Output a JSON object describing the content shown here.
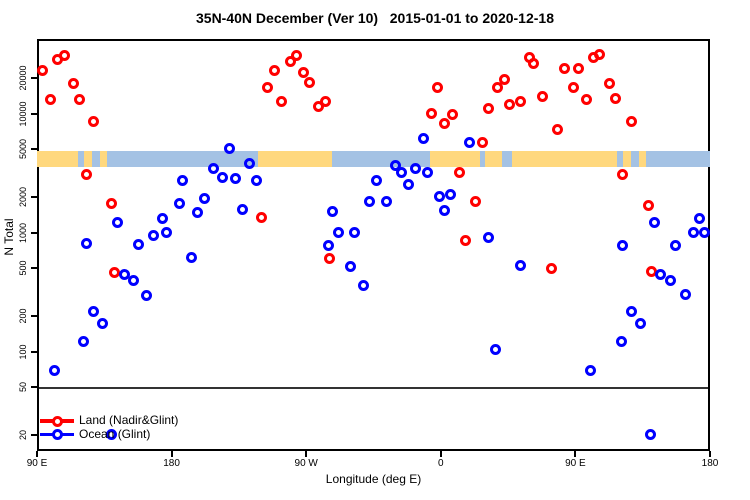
{
  "title": "35N-40N December (Ver 10)   2015-01-01 to 2020-12-18",
  "x_axis": {
    "label": "Longitude (deg E)",
    "ticks": [
      {
        "deg": 0,
        "label": "90 E"
      },
      {
        "deg": 90,
        "label": "180"
      },
      {
        "deg": 180,
        "label": "90 W"
      },
      {
        "deg": 270,
        "label": "0"
      },
      {
        "deg": 360,
        "label": "90 E"
      },
      {
        "deg": 450,
        "label": "180"
      }
    ]
  },
  "y_axis": {
    "label": "N Total",
    "ticks": [
      20000,
      10000,
      5000,
      2000,
      1000,
      500,
      200,
      100,
      50,
      20
    ]
  },
  "legend": {
    "items": [
      {
        "label": "Land (Nadir&Glint)",
        "color": "#FF0000"
      },
      {
        "label": "Ocean (Glint)",
        "color": "#0000FF"
      }
    ]
  },
  "colors": {
    "land_points": "#FF0000",
    "ocean_points": "#0000FF",
    "band_land": "#FFD87E",
    "band_ocean": "#A4C2E4",
    "hline": "#333333"
  },
  "chart_data": {
    "type": "scatter",
    "title": "35N-40N December (Ver 10)   2015-01-01 to 2020-12-18",
    "xlabel": "Longitude (deg E)",
    "ylabel": "N Total",
    "x_note": "x is degrees along wrapped longitude axis starting at 90E: 90E->180->90W->0->90E->180 (0-450)",
    "y_scale": "log",
    "ylim": [
      15,
      42000
    ],
    "xlim_deg": [
      0,
      450
    ],
    "hline_n": 50,
    "surface_band": {
      "n_range": [
        3600,
        4850
      ],
      "segments": [
        {
          "from": 0,
          "to": 27.4,
          "surface": "land"
        },
        {
          "from": 27.4,
          "to": 31.4,
          "surface": "ocean"
        },
        {
          "from": 31.4,
          "to": 36.8,
          "surface": "land"
        },
        {
          "from": 36.8,
          "to": 42.1,
          "surface": "ocean"
        },
        {
          "from": 42.1,
          "to": 46.8,
          "surface": "land"
        },
        {
          "from": 46.8,
          "to": 147.8,
          "surface": "ocean"
        },
        {
          "from": 147.8,
          "to": 197.2,
          "surface": "land"
        },
        {
          "from": 197.2,
          "to": 262.8,
          "surface": "ocean"
        },
        {
          "from": 262.8,
          "to": 296.2,
          "surface": "land"
        },
        {
          "from": 296.2,
          "to": 299.5,
          "surface": "ocean"
        },
        {
          "from": 299.5,
          "to": 310.9,
          "surface": "land"
        },
        {
          "from": 310.9,
          "to": 317.6,
          "surface": "ocean"
        },
        {
          "from": 317.6,
          "to": 387.8,
          "surface": "land"
        },
        {
          "from": 387.8,
          "to": 391.8,
          "surface": "ocean"
        },
        {
          "from": 391.8,
          "to": 397.2,
          "surface": "land"
        },
        {
          "from": 397.2,
          "to": 402.5,
          "surface": "ocean"
        },
        {
          "from": 402.5,
          "to": 407.2,
          "surface": "land"
        },
        {
          "from": 407.2,
          "to": 450,
          "surface": "ocean"
        }
      ]
    },
    "series": [
      {
        "name": "Land (Nadir&Glint)",
        "color": "#FF0000",
        "points": [
          [
            4,
            23200
          ],
          [
            14,
            28700
          ],
          [
            18.7,
            31000
          ],
          [
            8.7,
            13200
          ],
          [
            24.1,
            18000
          ],
          [
            28.1,
            13200
          ],
          [
            38.1,
            8500
          ],
          [
            33.4,
            3100
          ],
          [
            49.5,
            1740
          ],
          [
            51.5,
            457
          ],
          [
            149.8,
            1350
          ],
          [
            159.1,
            23200
          ],
          [
            169.2,
            27600
          ],
          [
            173.8,
            31000
          ],
          [
            178.5,
            22300
          ],
          [
            153.8,
            16700
          ],
          [
            182.5,
            18400
          ],
          [
            163.2,
            12700
          ],
          [
            193.2,
            12700
          ],
          [
            187.9,
            11350
          ],
          [
            195.9,
            600
          ],
          [
            264.1,
            10100
          ],
          [
            268.1,
            16700
          ],
          [
            272.8,
            8300
          ],
          [
            277.5,
            9900
          ],
          [
            282.8,
            3220
          ],
          [
            286.8,
            865
          ],
          [
            292.9,
            1840
          ],
          [
            298.2,
            5760
          ],
          [
            302.2,
            11100
          ],
          [
            308.2,
            16400
          ],
          [
            312.9,
            19500
          ],
          [
            316.2,
            11800
          ],
          [
            323,
            12500
          ],
          [
            329,
            29850
          ],
          [
            332.3,
            26100
          ],
          [
            337.7,
            14000
          ],
          [
            343.7,
            503
          ],
          [
            347.7,
            7280
          ],
          [
            353,
            23700
          ],
          [
            358.4,
            16400
          ],
          [
            362.4,
            23700
          ],
          [
            367.7,
            13200
          ],
          [
            372.4,
            29300
          ],
          [
            376.4,
            31600
          ],
          [
            383.1,
            18000
          ],
          [
            387.1,
            13500
          ],
          [
            391.8,
            3100
          ],
          [
            397.2,
            8500
          ],
          [
            409.2,
            1700
          ],
          [
            411.2,
            466
          ]
        ]
      },
      {
        "name": "Ocean (Glint)",
        "color": "#0000FF",
        "points": [
          [
            11.4,
            69
          ],
          [
            31.4,
            122
          ],
          [
            32.8,
            816
          ],
          [
            38.1,
            219
          ],
          [
            44.1,
            173
          ],
          [
            49.5,
            20
          ],
          [
            53.5,
            1225
          ],
          [
            58.2,
            440
          ],
          [
            64.2,
            399
          ],
          [
            68.2,
            800
          ],
          [
            73.5,
            293
          ],
          [
            78.2,
            935
          ],
          [
            83.6,
            1300
          ],
          [
            86.9,
            1010
          ],
          [
            95,
            1770
          ],
          [
            97,
            2710
          ],
          [
            103.6,
            611
          ],
          [
            107,
            1460
          ],
          [
            112.3,
            1950
          ],
          [
            117.7,
            3480
          ],
          [
            123.7,
            2920
          ],
          [
            128.4,
            5130
          ],
          [
            132.4,
            2820
          ],
          [
            137.7,
            1550
          ],
          [
            142.4,
            3770
          ],
          [
            147.1,
            2760
          ],
          [
            194.6,
            771
          ],
          [
            197.9,
            1490
          ],
          [
            201.9,
            1010
          ],
          [
            209.3,
            522
          ],
          [
            212.6,
            1010
          ],
          [
            218.6,
            362
          ],
          [
            222.6,
            1810
          ],
          [
            227.3,
            2710
          ],
          [
            233.4,
            1810
          ],
          [
            240,
            3690
          ],
          [
            244,
            3220
          ],
          [
            248.7,
            2510
          ],
          [
            253.4,
            3420
          ],
          [
            258.7,
            6110
          ],
          [
            261.4,
            3220
          ],
          [
            268.8,
            1990
          ],
          [
            272.8,
            1520
          ],
          [
            276.8,
            2070
          ],
          [
            289.5,
            5760
          ],
          [
            302.2,
            900
          ],
          [
            306.9,
            103
          ],
          [
            323,
            533
          ],
          [
            370.4,
            69
          ],
          [
            390.5,
            122
          ],
          [
            391.8,
            785
          ],
          [
            397.2,
            219
          ],
          [
            403.2,
            173
          ],
          [
            409.9,
            20
          ],
          [
            412.6,
            1225
          ],
          [
            416.6,
            440
          ],
          [
            423.3,
            399
          ],
          [
            426.6,
            771
          ],
          [
            433.3,
            299
          ],
          [
            438.7,
            1010
          ],
          [
            442.7,
            1300
          ],
          [
            446,
            1010
          ]
        ]
      }
    ]
  }
}
